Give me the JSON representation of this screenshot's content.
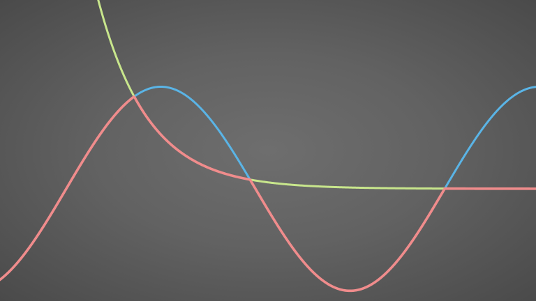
{
  "chart_data": {
    "type": "line",
    "title": "",
    "xlabel": "",
    "ylabel": "",
    "grid": false,
    "legend": "none",
    "xlim": [
      -1.1,
      7.8
    ],
    "ylim": [
      -1.1,
      1.85
    ],
    "background": "#666666",
    "series": [
      {
        "key": "sine",
        "color": "#5ab4e6",
        "function": "sin",
        "x_from": -1.1,
        "x_to": 7.8
      },
      {
        "key": "decay",
        "color": "#c8e68c",
        "function": "exp_decay",
        "amplitude": 3.5,
        "rate": 1.2,
        "x_from": -1.1,
        "x_to": 7.8
      },
      {
        "key": "min",
        "color": "#f08c8c",
        "function": "min_of_sine_and_decay",
        "x_from": -1.1,
        "x_to": 7.8
      }
    ]
  }
}
